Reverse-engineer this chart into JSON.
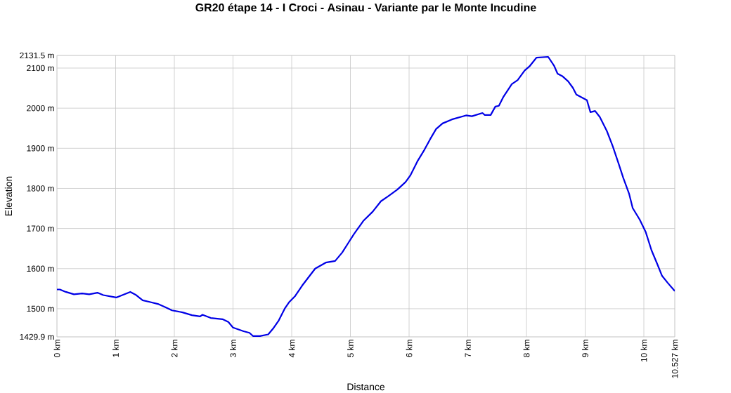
{
  "chart_data": {
    "type": "line",
    "title": "GR20 étape 14 - I Croci - Asinau - Variante par le Monte Incudine",
    "xlabel": "Distance",
    "ylabel": "Elevation",
    "x": [
      0,
      0.05,
      0.15,
      0.29,
      0.43,
      0.55,
      0.69,
      0.79,
      1.01,
      1.25,
      1.34,
      1.46,
      1.58,
      1.72,
      1.86,
      1.96,
      2.14,
      2.3,
      2.44,
      2.48,
      2.62,
      2.82,
      2.92,
      3.0,
      3.18,
      3.28,
      3.34,
      3.46,
      3.6,
      3.68,
      3.78,
      3.88,
      3.96,
      4.06,
      4.18,
      4.4,
      4.58,
      4.74,
      4.86,
      4.96,
      5.06,
      5.22,
      5.38,
      5.52,
      5.64,
      5.8,
      5.94,
      6.02,
      6.14,
      6.26,
      6.36,
      6.46,
      6.57,
      6.73,
      6.97,
      7.07,
      7.25,
      7.29,
      7.39,
      7.47,
      7.53,
      7.61,
      7.75,
      7.85,
      7.97,
      8.05,
      8.17,
      8.37,
      8.47,
      8.53,
      8.61,
      8.71,
      8.79,
      8.85,
      9.03,
      9.09,
      9.17,
      9.25,
      9.37,
      9.47,
      9.57,
      9.65,
      9.75,
      9.81,
      9.93,
      10.03,
      10.13,
      10.23,
      10.31,
      10.41,
      10.527
    ],
    "series": [
      {
        "color": "#0000e6",
        "values": [
          1548,
          1548,
          1542,
          1536,
          1538,
          1536,
          1540,
          1534,
          1528,
          1542,
          1535,
          1521,
          1517,
          1512,
          1503,
          1496,
          1491,
          1484,
          1481,
          1485,
          1477,
          1474,
          1467,
          1453,
          1444,
          1440,
          1432,
          1432,
          1436,
          1450,
          1471,
          1500,
          1517,
          1532,
          1558,
          1600,
          1615,
          1619,
          1640,
          1663,
          1686,
          1719,
          1742,
          1768,
          1780,
          1797,
          1816,
          1832,
          1867,
          1896,
          1923,
          1948,
          1962,
          1972,
          1982,
          1980,
          1988,
          1983,
          1983,
          2004,
          2006,
          2029,
          2060,
          2070,
          2094,
          2104,
          2126,
          2128,
          2106,
          2086,
          2080,
          2067,
          2051,
          2034,
          2020,
          1990,
          1993,
          1978,
          1943,
          1905,
          1862,
          1826,
          1786,
          1751,
          1722,
          1692,
          1646,
          1611,
          1582,
          1564,
          1544
        ]
      }
    ],
    "xlim": [
      0,
      10.527
    ],
    "ylim": [
      1429.9,
      2131.5
    ],
    "xticks": [
      {
        "value": 0,
        "label": "0 km"
      },
      {
        "value": 1,
        "label": "1 km"
      },
      {
        "value": 2,
        "label": "2 km"
      },
      {
        "value": 3,
        "label": "3 km"
      },
      {
        "value": 4,
        "label": "4 km"
      },
      {
        "value": 5,
        "label": "5 km"
      },
      {
        "value": 6,
        "label": "6 km"
      },
      {
        "value": 7,
        "label": "7 km"
      },
      {
        "value": 8,
        "label": "8 km"
      },
      {
        "value": 9,
        "label": "9 km"
      },
      {
        "value": 10,
        "label": "10 km"
      },
      {
        "value": 10.527,
        "label": "10.527 km"
      }
    ],
    "yticks": [
      {
        "value": 1429.9,
        "label": "1429.9 m"
      },
      {
        "value": 1500,
        "label": "1500 m"
      },
      {
        "value": 1600,
        "label": "1600 m"
      },
      {
        "value": 1700,
        "label": "1700 m"
      },
      {
        "value": 1800,
        "label": "1800 m"
      },
      {
        "value": 1900,
        "label": "1900 m"
      },
      {
        "value": 2000,
        "label": "2000 m"
      },
      {
        "value": 2100,
        "label": "2100 m"
      },
      {
        "value": 2131.5,
        "label": "2131.5 m"
      }
    ],
    "grid": true,
    "marker": "none",
    "line_style": "solid"
  }
}
